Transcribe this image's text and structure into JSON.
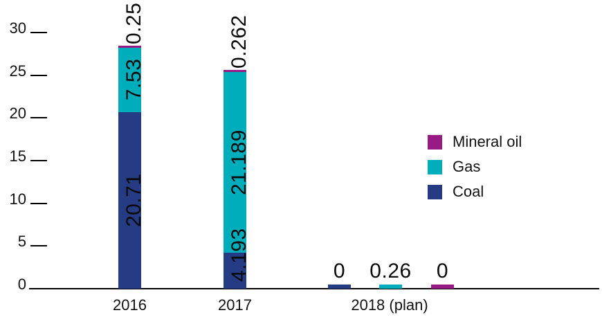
{
  "chart_data": {
    "type": "bar",
    "subtype": "stacked",
    "title": "",
    "xlabel": "",
    "ylabel": "",
    "categories": [
      "2016",
      "2017",
      "2018 (plan)"
    ],
    "category_display": [
      "stacked",
      "stacked",
      "grouped"
    ],
    "series": [
      {
        "name": "Coal",
        "color": "#253b84",
        "values": [
          20.71,
          4.193,
          0
        ],
        "labels": [
          "20.71",
          "4.193",
          "0"
        ]
      },
      {
        "name": "Gas",
        "color": "#00adbb",
        "values": [
          7.53,
          21.189,
          0.26
        ],
        "labels": [
          "7.53",
          "21.189",
          "0.26"
        ]
      },
      {
        "name": "Mineral oil",
        "color": "#981b85",
        "values": [
          0.25,
          0.262,
          0
        ],
        "labels": [
          "0.25",
          "0.262",
          "0"
        ]
      }
    ],
    "totals": [
      28.49,
      25.644,
      0.26
    ],
    "yticks": [
      0,
      5,
      10,
      15,
      20,
      25,
      30
    ],
    "ylim": [
      0,
      30
    ],
    "grid": false,
    "legend": {
      "position": "right",
      "items": [
        "Mineral oil",
        "Gas",
        "Coal"
      ]
    }
  }
}
